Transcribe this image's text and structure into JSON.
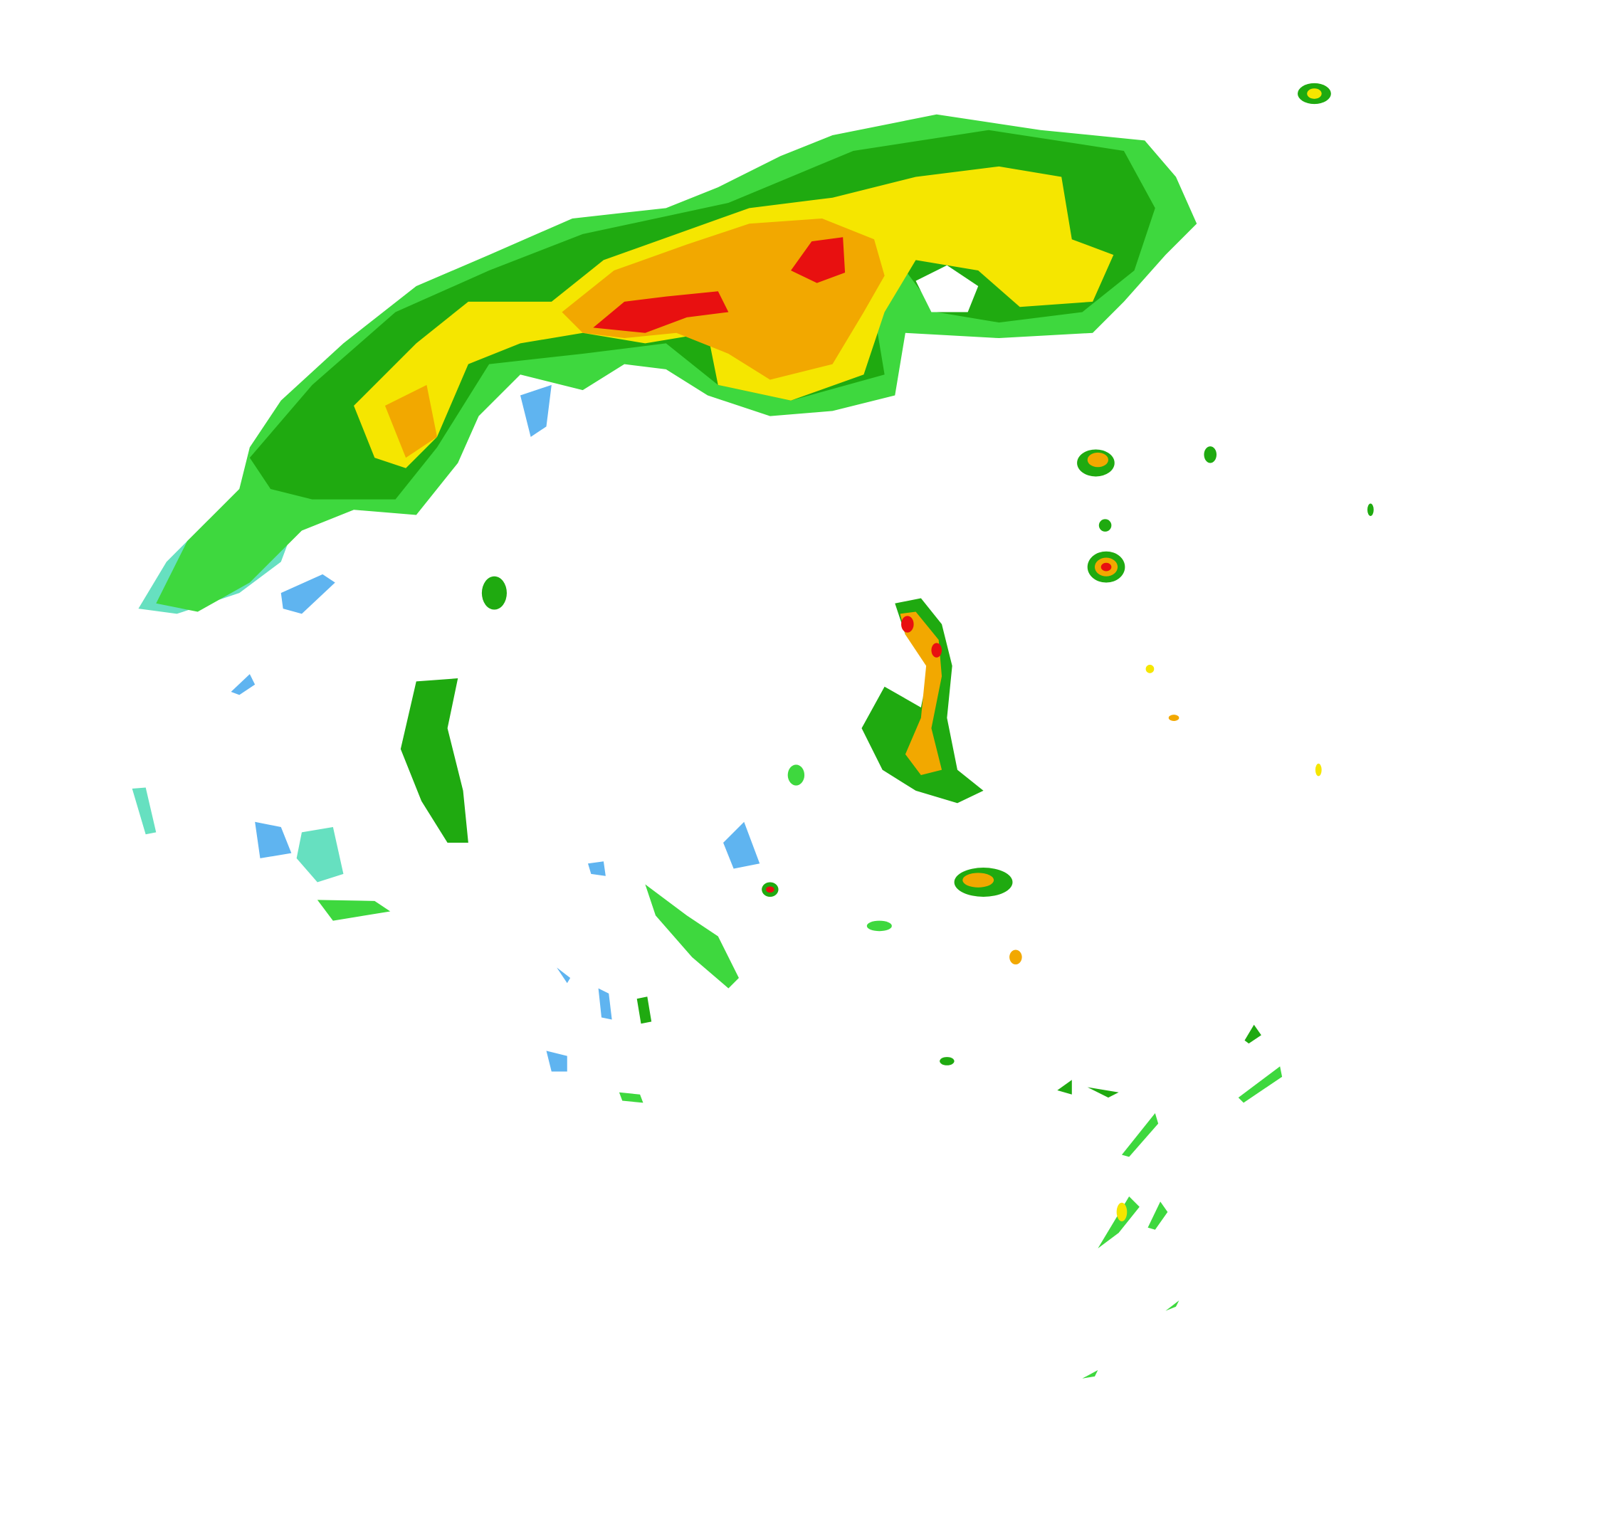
{
  "map": {
    "type": "weather-radar-reflectivity",
    "background": "#ffffff",
    "palette": {
      "light_blue": "#5fb4f0",
      "cyan": "#66e0c0",
      "light_green": "#3ed83e",
      "green": "#1faa10",
      "yellow": "#f5e600",
      "orange": "#f2a800",
      "red": "#e81010"
    }
  }
}
